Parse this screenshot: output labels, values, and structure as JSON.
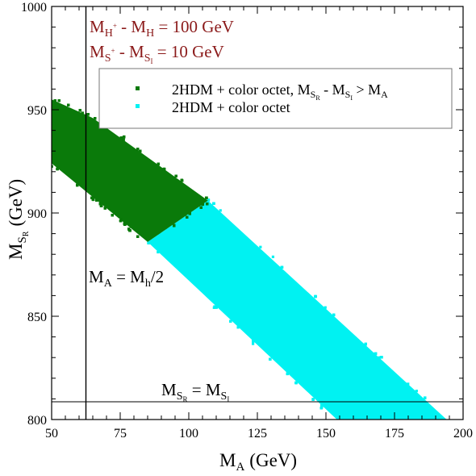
{
  "colors": {
    "green": "#0a7a0a",
    "cyan": "#00f2f2",
    "dark_red": "#8b1a1a",
    "black": "#000000"
  },
  "chart_data": {
    "type": "scatter",
    "xlabel_main": "M",
    "xlabel_sub": "A",
    "xlabel_unit": "(GeV)",
    "ylabel_main": "M",
    "ylabel_sub": "S",
    "ylabel_subsub": "R",
    "ylabel_unit": "(GeV)",
    "xlim": [
      50,
      200
    ],
    "ylim": [
      800,
      1000
    ],
    "x_ticks": [
      50,
      75,
      100,
      125,
      150,
      175,
      200
    ],
    "y_ticks": [
      800,
      850,
      900,
      950,
      1000
    ],
    "annotations": {
      "line1": {
        "a": "M",
        "a_sup": "H",
        "a_supsup": "+",
        "mid": " - M",
        "b_sub": "H",
        "rest": " = 100 GeV"
      },
      "line2": {
        "a": "M",
        "a_sub": "S",
        "a_subsup": "+",
        "mid": " - M",
        "b_sub": "S",
        "b_subsub": "I",
        "rest": " = 10 GeV"
      },
      "vline": {
        "x": 62.5,
        "left": "M",
        "left_sub": "A",
        "mid": " = M",
        "right_sub": "h",
        "rest": "/2"
      },
      "hline": {
        "y": 800,
        "left": "M",
        "left_sub": "S",
        "left_subsub": "R",
        "mid": " = M",
        "right_sub": "S",
        "right_subsub": "I"
      }
    },
    "legend": {
      "placement": "top-right",
      "entries": [
        {
          "series": "green",
          "text": "2HDM + color octet, M",
          "sub1": "S",
          "subsub1": "R",
          "t2": " - M",
          "sub2": "S",
          "subsub2": "I",
          "t3": " > M",
          "sub3": "A"
        },
        {
          "series": "cyan",
          "text": "2HDM + color octet"
        }
      ]
    },
    "series": [
      {
        "id": "cyan",
        "region": [
          [
            85,
            886
          ],
          [
            107,
            906
          ],
          [
            194,
            800
          ],
          [
            154,
            800
          ]
        ]
      },
      {
        "id": "green",
        "region": [
          [
            50,
            924
          ],
          [
            50,
            955
          ],
          [
            65,
            946
          ],
          [
            107,
            906
          ],
          [
            85,
            886
          ]
        ]
      }
    ]
  }
}
